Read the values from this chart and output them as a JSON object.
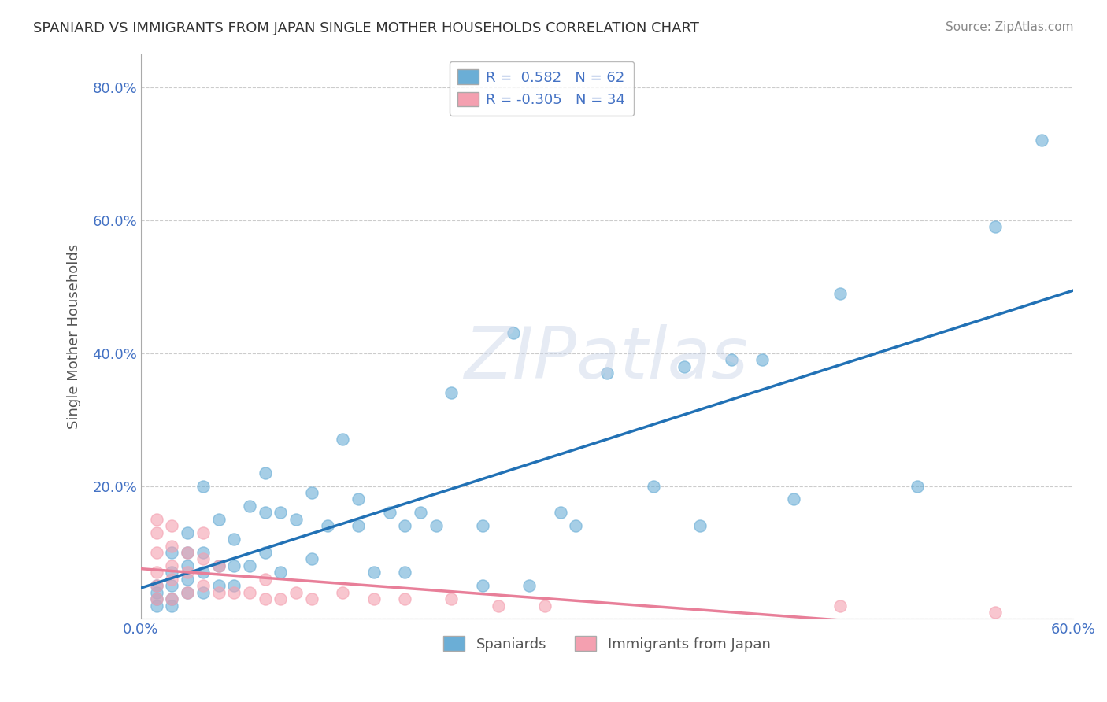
{
  "title": "SPANIARD VS IMMIGRANTS FROM JAPAN SINGLE MOTHER HOUSEHOLDS CORRELATION CHART",
  "source": "Source: ZipAtlas.com",
  "ylabel": "Single Mother Households",
  "xlabel": "",
  "xlim": [
    0.0,
    0.6
  ],
  "ylim": [
    0.0,
    0.85
  ],
  "xticks": [
    0.0,
    0.1,
    0.2,
    0.3,
    0.4,
    0.5,
    0.6
  ],
  "yticks": [
    0.0,
    0.2,
    0.4,
    0.6,
    0.8
  ],
  "blue_color": "#6baed6",
  "pink_color": "#f4a0b0",
  "blue_line_color": "#2171b5",
  "pink_line_color": "#e87f99",
  "watermark": "ZIPatlas",
  "blue_dots": [
    [
      0.01,
      0.02
    ],
    [
      0.01,
      0.03
    ],
    [
      0.01,
      0.04
    ],
    [
      0.01,
      0.05
    ],
    [
      0.02,
      0.02
    ],
    [
      0.02,
      0.03
    ],
    [
      0.02,
      0.05
    ],
    [
      0.02,
      0.07
    ],
    [
      0.02,
      0.1
    ],
    [
      0.03,
      0.04
    ],
    [
      0.03,
      0.06
    ],
    [
      0.03,
      0.08
    ],
    [
      0.03,
      0.1
    ],
    [
      0.03,
      0.13
    ],
    [
      0.04,
      0.04
    ],
    [
      0.04,
      0.07
    ],
    [
      0.04,
      0.1
    ],
    [
      0.04,
      0.2
    ],
    [
      0.05,
      0.05
    ],
    [
      0.05,
      0.08
    ],
    [
      0.05,
      0.15
    ],
    [
      0.06,
      0.05
    ],
    [
      0.06,
      0.08
    ],
    [
      0.06,
      0.12
    ],
    [
      0.07,
      0.08
    ],
    [
      0.07,
      0.17
    ],
    [
      0.08,
      0.1
    ],
    [
      0.08,
      0.16
    ],
    [
      0.08,
      0.22
    ],
    [
      0.09,
      0.07
    ],
    [
      0.09,
      0.16
    ],
    [
      0.1,
      0.15
    ],
    [
      0.11,
      0.09
    ],
    [
      0.11,
      0.19
    ],
    [
      0.12,
      0.14
    ],
    [
      0.13,
      0.27
    ],
    [
      0.14,
      0.14
    ],
    [
      0.14,
      0.18
    ],
    [
      0.15,
      0.07
    ],
    [
      0.16,
      0.16
    ],
    [
      0.17,
      0.07
    ],
    [
      0.17,
      0.14
    ],
    [
      0.18,
      0.16
    ],
    [
      0.19,
      0.14
    ],
    [
      0.2,
      0.34
    ],
    [
      0.22,
      0.05
    ],
    [
      0.22,
      0.14
    ],
    [
      0.24,
      0.43
    ],
    [
      0.25,
      0.05
    ],
    [
      0.27,
      0.16
    ],
    [
      0.28,
      0.14
    ],
    [
      0.3,
      0.37
    ],
    [
      0.33,
      0.2
    ],
    [
      0.35,
      0.38
    ],
    [
      0.36,
      0.14
    ],
    [
      0.38,
      0.39
    ],
    [
      0.4,
      0.39
    ],
    [
      0.42,
      0.18
    ],
    [
      0.45,
      0.49
    ],
    [
      0.5,
      0.2
    ],
    [
      0.55,
      0.59
    ],
    [
      0.58,
      0.72
    ]
  ],
  "pink_dots": [
    [
      0.01,
      0.03
    ],
    [
      0.01,
      0.05
    ],
    [
      0.01,
      0.07
    ],
    [
      0.01,
      0.1
    ],
    [
      0.01,
      0.13
    ],
    [
      0.01,
      0.15
    ],
    [
      0.02,
      0.03
    ],
    [
      0.02,
      0.06
    ],
    [
      0.02,
      0.08
    ],
    [
      0.02,
      0.11
    ],
    [
      0.02,
      0.14
    ],
    [
      0.03,
      0.04
    ],
    [
      0.03,
      0.07
    ],
    [
      0.03,
      0.1
    ],
    [
      0.04,
      0.05
    ],
    [
      0.04,
      0.09
    ],
    [
      0.04,
      0.13
    ],
    [
      0.05,
      0.04
    ],
    [
      0.05,
      0.08
    ],
    [
      0.06,
      0.04
    ],
    [
      0.07,
      0.04
    ],
    [
      0.08,
      0.03
    ],
    [
      0.08,
      0.06
    ],
    [
      0.09,
      0.03
    ],
    [
      0.1,
      0.04
    ],
    [
      0.11,
      0.03
    ],
    [
      0.13,
      0.04
    ],
    [
      0.15,
      0.03
    ],
    [
      0.17,
      0.03
    ],
    [
      0.2,
      0.03
    ],
    [
      0.23,
      0.02
    ],
    [
      0.26,
      0.02
    ],
    [
      0.45,
      0.02
    ],
    [
      0.55,
      0.01
    ]
  ]
}
